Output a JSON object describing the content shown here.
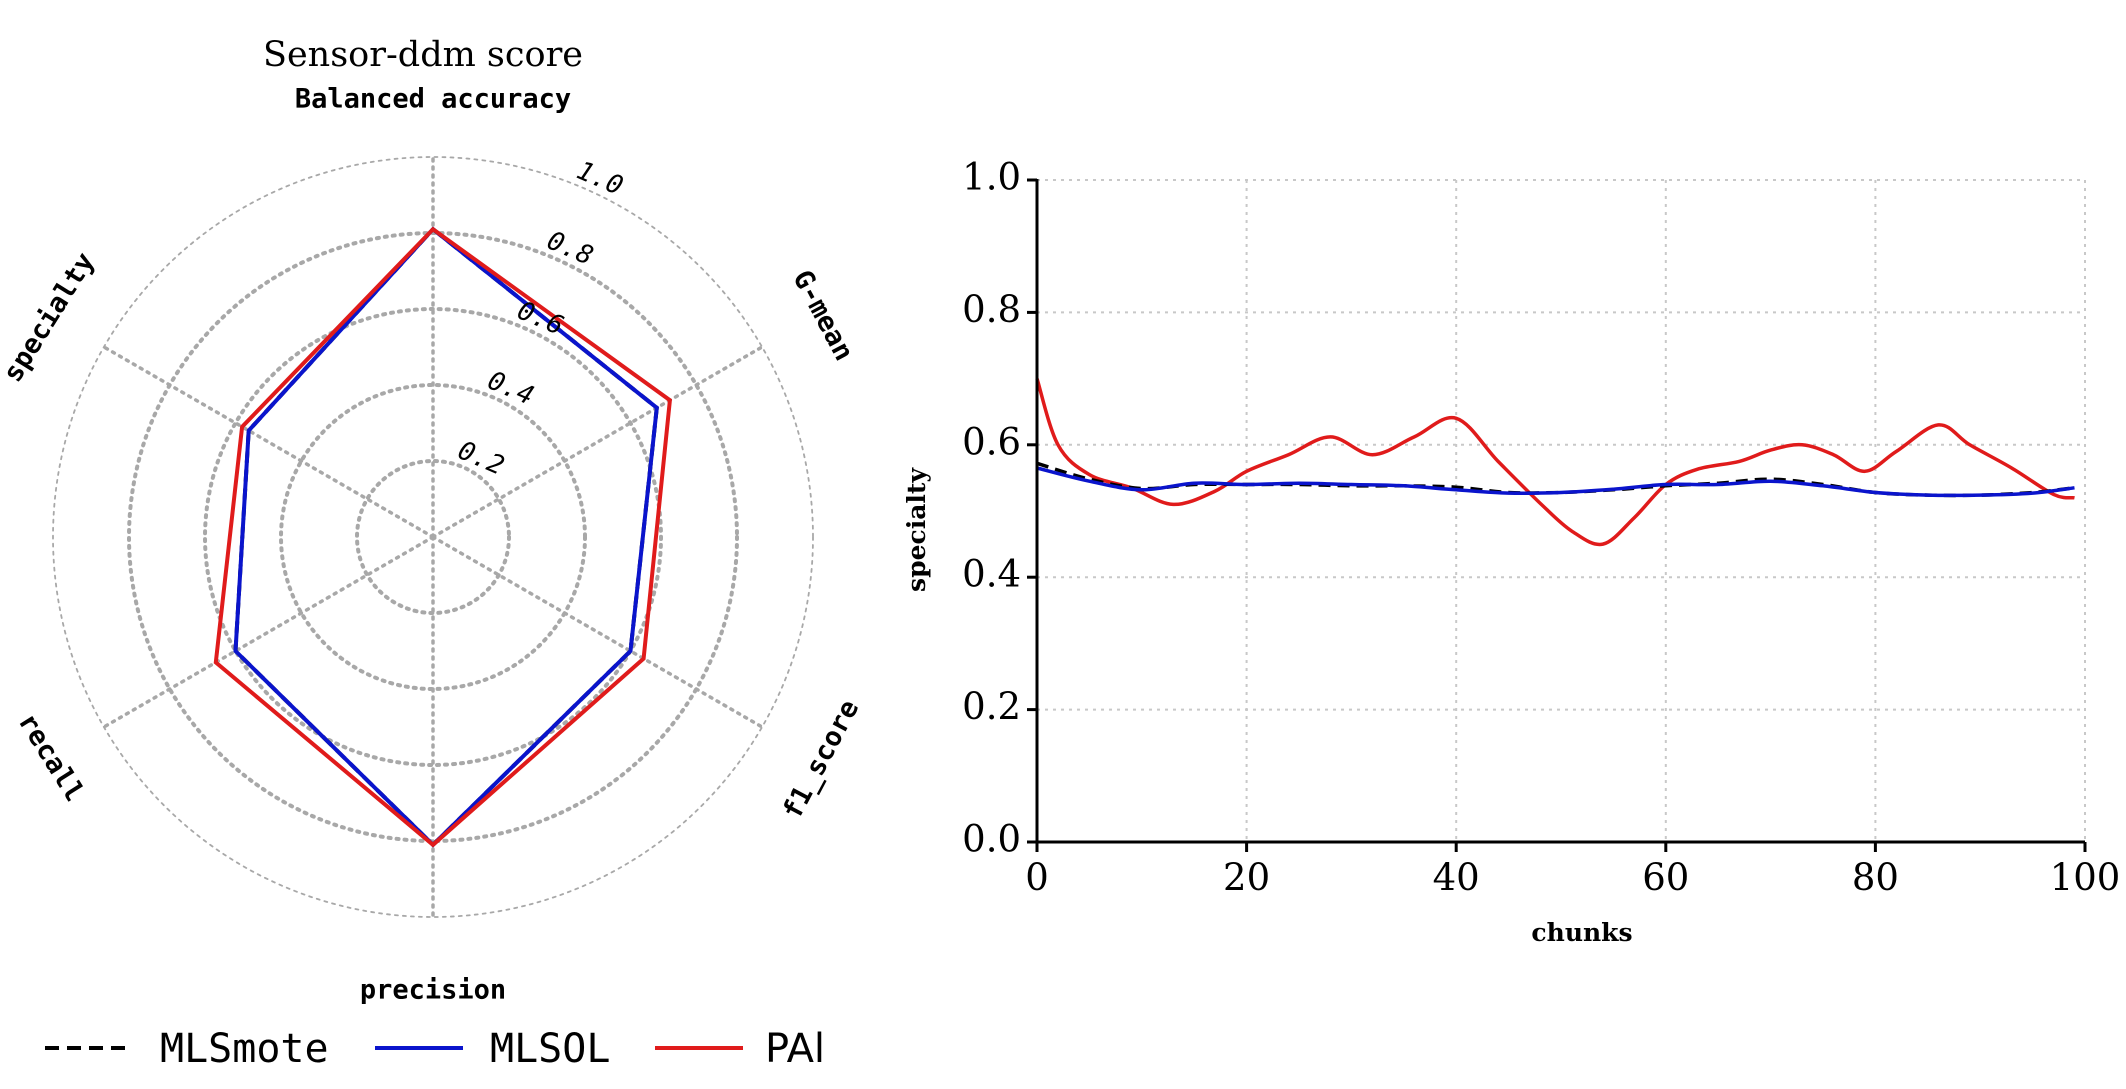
{
  "chart_data": [
    {
      "type": "radar",
      "title": "Sensor-ddm score",
      "axes": [
        "Balanced accuracy",
        "G-mean",
        "f1_score",
        "precision",
        "recall",
        "specialty"
      ],
      "radial_range": [
        0,
        1.0
      ],
      "radial_ticks": [
        0.2,
        0.4,
        0.6,
        0.8,
        1.0
      ],
      "radial_tick_labels": [
        "0.2",
        "0.4",
        "0.6",
        "0.8",
        "1.0"
      ],
      "grid": true,
      "series": [
        {
          "name": "MLSmote",
          "color": "#000000",
          "style": "dashed",
          "values": [
            0.81,
            0.68,
            0.6,
            0.81,
            0.6,
            0.56
          ]
        },
        {
          "name": "MLSOL",
          "color": "#0a14cc",
          "style": "solid",
          "values": [
            0.81,
            0.68,
            0.6,
            0.81,
            0.6,
            0.56
          ]
        },
        {
          "name": "PAl",
          "color": "#e01b1b",
          "style": "solid",
          "values": [
            0.81,
            0.72,
            0.64,
            0.81,
            0.66,
            0.58
          ]
        }
      ]
    },
    {
      "type": "line",
      "xlabel": "chunks",
      "ylabel": "specialty",
      "xlim": [
        0,
        100
      ],
      "ylim": [
        0.0,
        1.0
      ],
      "xticks": [
        0,
        20,
        40,
        60,
        80,
        100
      ],
      "yticks": [
        0.0,
        0.2,
        0.4,
        0.6,
        0.8,
        1.0
      ],
      "xtick_labels": [
        "0",
        "20",
        "40",
        "60",
        "80",
        "100"
      ],
      "ytick_labels": [
        "0.0",
        "0.2",
        "0.4",
        "0.6",
        "0.8",
        "1.0"
      ],
      "grid": true,
      "series": [
        {
          "name": "MLSmote",
          "color": "#000000",
          "style": "dashed",
          "x": [
            0,
            5,
            10,
            15,
            20,
            25,
            30,
            35,
            40,
            45,
            50,
            55,
            60,
            65,
            70,
            75,
            80,
            85,
            90,
            95,
            99
          ],
          "y": [
            0.572,
            0.548,
            0.534,
            0.54,
            0.54,
            0.54,
            0.538,
            0.538,
            0.536,
            0.528,
            0.528,
            0.532,
            0.538,
            0.542,
            0.548,
            0.54,
            0.528,
            0.524,
            0.524,
            0.528,
            0.535
          ]
        },
        {
          "name": "MLSOL",
          "color": "#0a14cc",
          "style": "solid",
          "x": [
            0,
            5,
            10,
            15,
            20,
            25,
            30,
            35,
            40,
            45,
            50,
            55,
            60,
            65,
            70,
            75,
            80,
            85,
            90,
            95,
            99
          ],
          "y": [
            0.565,
            0.545,
            0.532,
            0.542,
            0.54,
            0.542,
            0.54,
            0.538,
            0.532,
            0.527,
            0.528,
            0.533,
            0.54,
            0.54,
            0.545,
            0.538,
            0.528,
            0.524,
            0.524,
            0.527,
            0.535
          ]
        },
        {
          "name": "PAl",
          "color": "#e01b1b",
          "style": "solid",
          "x": [
            0,
            2,
            5,
            9,
            13,
            17,
            20,
            24,
            28,
            32,
            36,
            40,
            44,
            48,
            51,
            54,
            57,
            60,
            63,
            67,
            70,
            73,
            76,
            79,
            82,
            86,
            89,
            93,
            97,
            99
          ],
          "y": [
            0.7,
            0.6,
            0.555,
            0.535,
            0.51,
            0.53,
            0.56,
            0.585,
            0.612,
            0.585,
            0.612,
            0.64,
            0.575,
            0.512,
            0.47,
            0.45,
            0.49,
            0.54,
            0.563,
            0.575,
            0.592,
            0.6,
            0.585,
            0.56,
            0.59,
            0.63,
            0.6,
            0.565,
            0.525,
            0.52
          ]
        }
      ]
    }
  ],
  "legend": {
    "items": [
      {
        "label": "MLSmote",
        "color": "#000000",
        "style": "dashed"
      },
      {
        "label": "MLSOL",
        "color": "#0a14cc",
        "style": "solid"
      },
      {
        "label": "PAl",
        "color": "#e01b1b",
        "style": "solid"
      }
    ]
  }
}
